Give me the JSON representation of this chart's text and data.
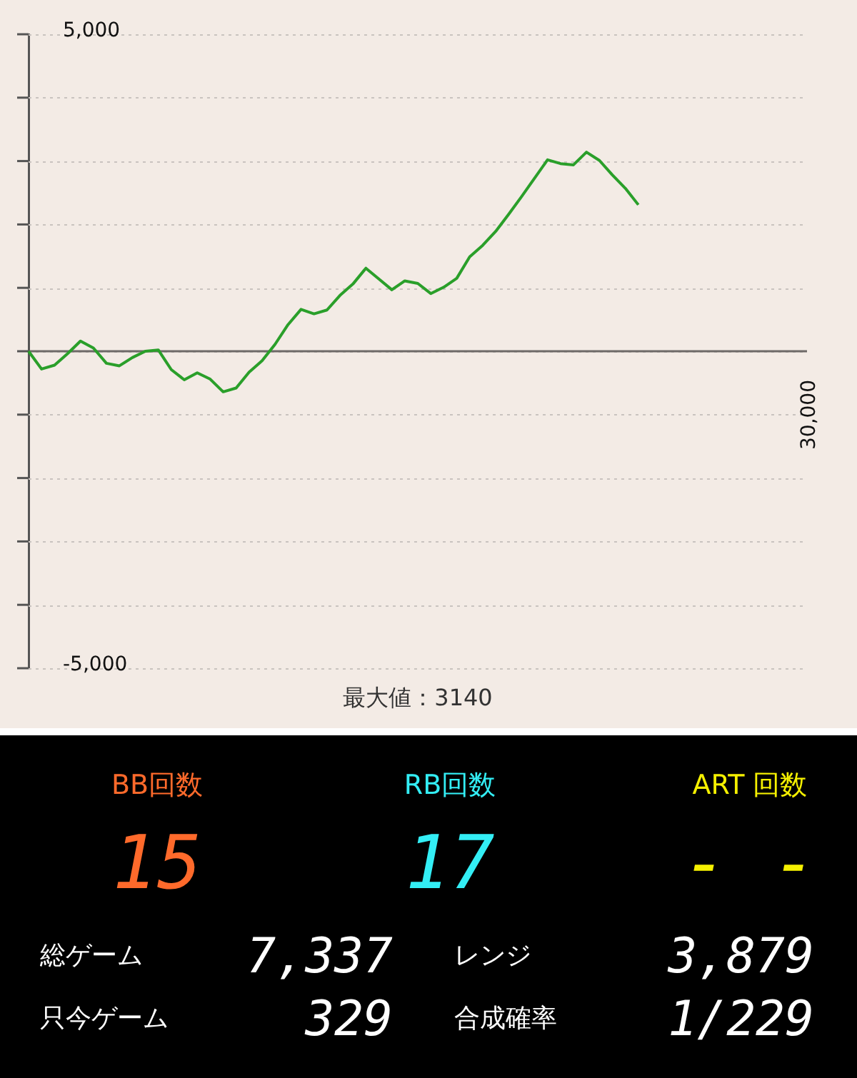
{
  "chart_data": [
    {
      "type": "line",
      "categories": [
        null,
        null,
        null,
        null,
        null,
        null,
        null,
        null,
        null,
        null,
        null,
        null,
        null,
        null,
        null,
        null,
        null,
        null,
        null,
        null,
        null,
        null,
        null,
        null,
        null,
        null,
        null,
        null,
        null,
        null,
        null,
        null,
        null,
        null,
        null,
        null,
        null,
        null,
        null,
        null,
        null,
        null,
        null,
        null,
        null,
        null,
        null,
        null,
        null,
        null,
        null,
        null,
        null,
        null,
        null,
        null,
        null,
        null,
        null,
        null,
        null
      ],
      "ylim": [
        -5000,
        5000
      ],
      "yticks": [
        {
          "value": -5000,
          "label": "-5,000"
        },
        {
          "value": -4000,
          "label": null
        },
        {
          "value": -3000,
          "label": null
        },
        {
          "value": -2000,
          "label": null
        },
        {
          "value": -1000,
          "label": null
        },
        {
          "value": 0,
          "label": null
        },
        {
          "value": 1000,
          "label": null
        },
        {
          "value": 2000,
          "label": null
        },
        {
          "value": 3000,
          "label": null
        },
        {
          "value": 4000,
          "label": null
        },
        {
          "value": 5000,
          "label": "5,000"
        }
      ],
      "grid": "y",
      "marker": "none",
      "line_style": "solid",
      "legend": false,
      "ref_lines": [
        {
          "axis": "y",
          "value": 0,
          "color": "#6e6a68"
        }
      ],
      "annotations": [
        "最大値：3140",
        "30,000"
      ],
      "series": [
        {
          "color": "#2a9f2a",
          "values": [
            0,
            -280,
            -220,
            -40,
            160,
            50,
            -190,
            -230,
            -100,
            0,
            20,
            -290,
            -450,
            -340,
            -440,
            -640,
            -580,
            -330,
            -150,
            110,
            420,
            660,
            590,
            650,
            880,
            1060,
            1310,
            1140,
            970,
            1110,
            1070,
            910,
            1010,
            1150,
            1490,
            1670,
            1890,
            2160,
            2440,
            2730,
            3020,
            2960,
            2940,
            3140,
            3010,
            2780,
            2570,
            2310,
            null,
            null,
            null,
            null,
            null,
            null,
            null,
            null,
            null,
            null,
            null,
            null,
            null
          ]
        }
      ]
    },
    {
      "type": "other",
      "annotations": [
        "BB回数",
        "15",
        "RB回数",
        "17",
        "ART 回数",
        "- -",
        "総ゲーム",
        "7,337",
        "レンジ",
        "3,879",
        "只今ゲーム",
        "329",
        "合成確率",
        "1/229"
      ]
    }
  ]
}
